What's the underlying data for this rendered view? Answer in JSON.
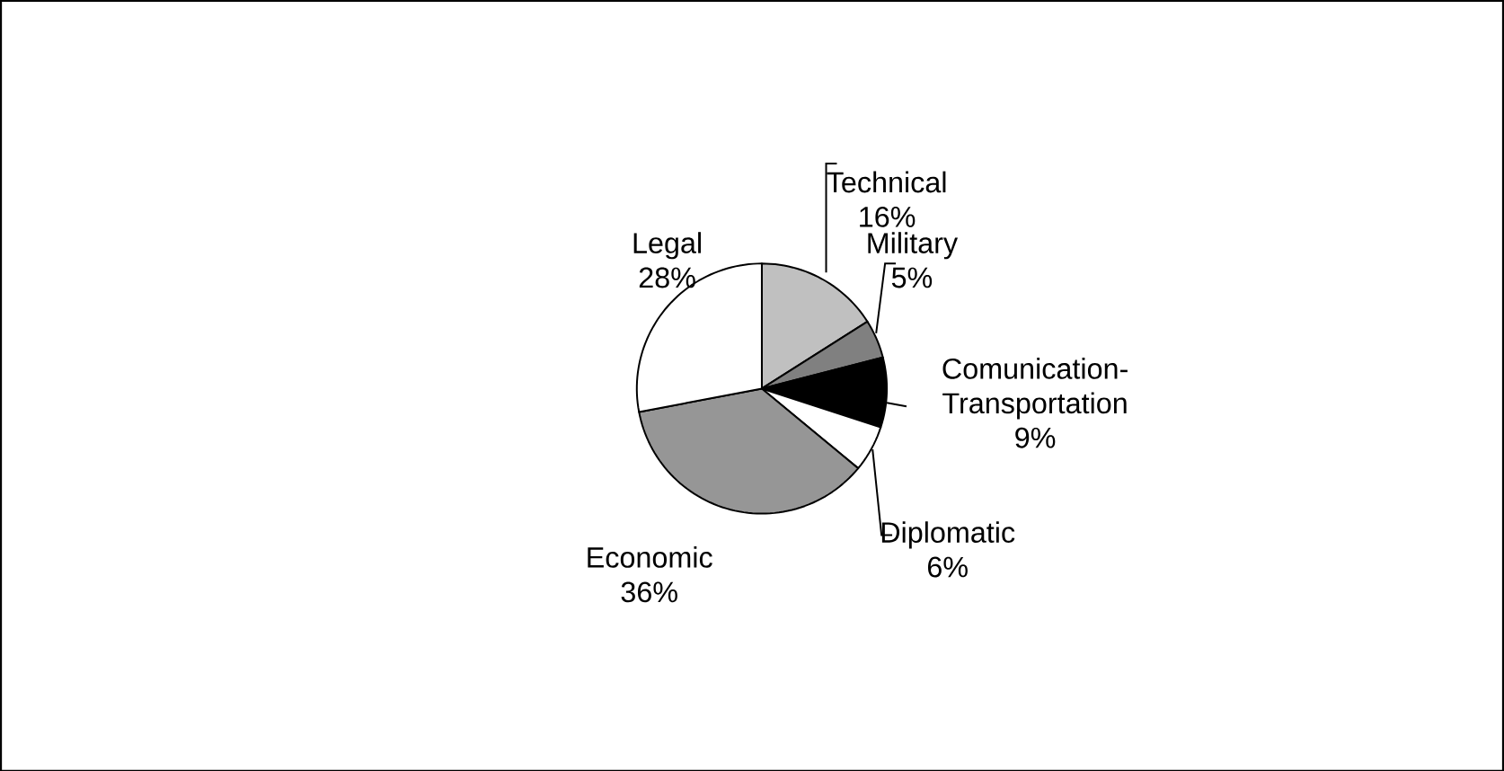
{
  "chart_data": {
    "type": "pie",
    "categories": [
      "Technical",
      "Military",
      "Comunication-Transportation",
      "Diplomatic",
      "Economic",
      "Legal"
    ],
    "values": [
      16,
      5,
      9,
      6,
      36,
      28
    ],
    "value_labels": [
      "16%",
      "5%",
      "9%",
      "6%",
      "36%",
      "28%"
    ],
    "colors": [
      "#c0c0c0",
      "#808080",
      "#000000",
      "#ffffff",
      "#969696",
      "#ffffff"
    ]
  }
}
